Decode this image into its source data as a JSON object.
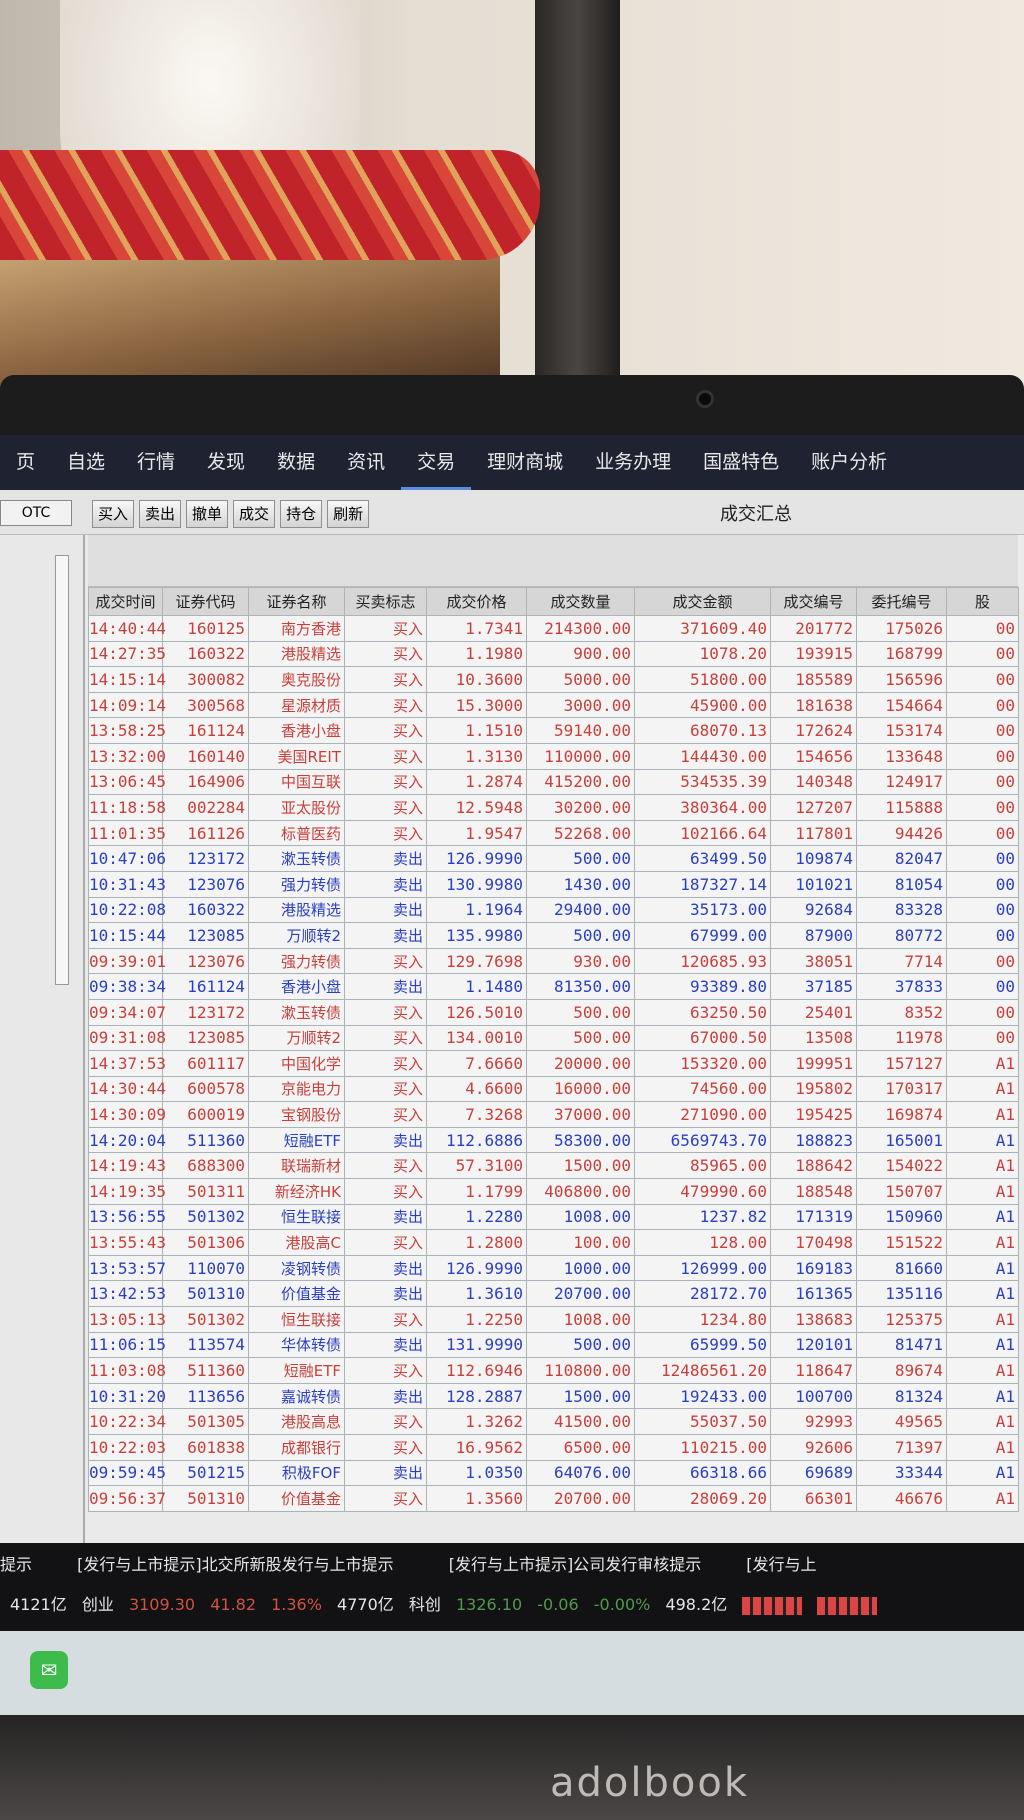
{
  "nav": {
    "items": [
      "页",
      "自选",
      "行情",
      "发现",
      "数据",
      "资讯",
      "交易",
      "理财商城",
      "业务办理",
      "国盛特色",
      "账户分析"
    ],
    "active": "交易"
  },
  "sidebar": {
    "otc_label": "OTC"
  },
  "toolbar": {
    "buttons": [
      "买入",
      "卖出",
      "撤单",
      "成交",
      "持仓",
      "刷新"
    ],
    "title": "成交汇总"
  },
  "table": {
    "columns": [
      "成交时间",
      "证券代码",
      "证券名称",
      "买卖标志",
      "成交价格",
      "成交数量",
      "成交金额",
      "成交编号",
      "委托编号",
      "股"
    ],
    "rows": [
      [
        "14:40:44",
        "160125",
        "南方香港",
        "买入",
        "1.7341",
        "214300.00",
        "371609.40",
        "201772",
        "175026",
        "00"
      ],
      [
        "14:27:35",
        "160322",
        "港股精选",
        "买入",
        "1.1980",
        "900.00",
        "1078.20",
        "193915",
        "168799",
        "00"
      ],
      [
        "14:15:14",
        "300082",
        "奥克股份",
        "买入",
        "10.3600",
        "5000.00",
        "51800.00",
        "185589",
        "156596",
        "00"
      ],
      [
        "14:09:14",
        "300568",
        "星源材质",
        "买入",
        "15.3000",
        "3000.00",
        "45900.00",
        "181638",
        "154664",
        "00"
      ],
      [
        "13:58:25",
        "161124",
        "香港小盘",
        "买入",
        "1.1510",
        "59140.00",
        "68070.13",
        "172624",
        "153174",
        "00"
      ],
      [
        "13:32:00",
        "160140",
        "美国REIT",
        "买入",
        "1.3130",
        "110000.00",
        "144430.00",
        "154656",
        "133648",
        "00"
      ],
      [
        "13:06:45",
        "164906",
        "中国互联",
        "买入",
        "1.2874",
        "415200.00",
        "534535.39",
        "140348",
        "124917",
        "00"
      ],
      [
        "11:18:58",
        "002284",
        "亚太股份",
        "买入",
        "12.5948",
        "30200.00",
        "380364.00",
        "127207",
        "115888",
        "00"
      ],
      [
        "11:01:35",
        "161126",
        "标普医药",
        "买入",
        "1.9547",
        "52268.00",
        "102166.64",
        "117801",
        "94426",
        "00"
      ],
      [
        "10:47:06",
        "123172",
        "漱玉转债",
        "卖出",
        "126.9990",
        "500.00",
        "63499.50",
        "109874",
        "82047",
        "00"
      ],
      [
        "10:31:43",
        "123076",
        "强力转债",
        "卖出",
        "130.9980",
        "1430.00",
        "187327.14",
        "101021",
        "81054",
        "00"
      ],
      [
        "10:22:08",
        "160322",
        "港股精选",
        "卖出",
        "1.1964",
        "29400.00",
        "35173.00",
        "92684",
        "83328",
        "00"
      ],
      [
        "10:15:44",
        "123085",
        "万顺转2",
        "卖出",
        "135.9980",
        "500.00",
        "67999.00",
        "87900",
        "80772",
        "00"
      ],
      [
        "09:39:01",
        "123076",
        "强力转债",
        "买入",
        "129.7698",
        "930.00",
        "120685.93",
        "38051",
        "7714",
        "00"
      ],
      [
        "09:38:34",
        "161124",
        "香港小盘",
        "卖出",
        "1.1480",
        "81350.00",
        "93389.80",
        "37185",
        "37833",
        "00"
      ],
      [
        "09:34:07",
        "123172",
        "漱玉转债",
        "买入",
        "126.5010",
        "500.00",
        "63250.50",
        "25401",
        "8352",
        "00"
      ],
      [
        "09:31:08",
        "123085",
        "万顺转2",
        "买入",
        "134.0010",
        "500.00",
        "67000.50",
        "13508",
        "11978",
        "00"
      ],
      [
        "14:37:53",
        "601117",
        "中国化学",
        "买入",
        "7.6660",
        "20000.00",
        "153320.00",
        "199951",
        "157127",
        "A1"
      ],
      [
        "14:30:44",
        "600578",
        "京能电力",
        "买入",
        "4.6600",
        "16000.00",
        "74560.00",
        "195802",
        "170317",
        "A1"
      ],
      [
        "14:30:09",
        "600019",
        "宝钢股份",
        "买入",
        "7.3268",
        "37000.00",
        "271090.00",
        "195425",
        "169874",
        "A1"
      ],
      [
        "14:20:04",
        "511360",
        "短融ETF",
        "卖出",
        "112.6886",
        "58300.00",
        "6569743.70",
        "188823",
        "165001",
        "A1"
      ],
      [
        "14:19:43",
        "688300",
        "联瑞新材",
        "买入",
        "57.3100",
        "1500.00",
        "85965.00",
        "188642",
        "154022",
        "A1"
      ],
      [
        "14:19:35",
        "501311",
        "新经济HK",
        "买入",
        "1.1799",
        "406800.00",
        "479990.60",
        "188548",
        "150707",
        "A1"
      ],
      [
        "13:56:55",
        "501302",
        "恒生联接",
        "卖出",
        "1.2280",
        "1008.00",
        "1237.82",
        "171319",
        "150960",
        "A1"
      ],
      [
        "13:55:43",
        "501306",
        "港股高C",
        "买入",
        "1.2800",
        "100.00",
        "128.00",
        "170498",
        "151522",
        "A1"
      ],
      [
        "13:53:57",
        "110070",
        "凌钢转债",
        "卖出",
        "126.9990",
        "1000.00",
        "126999.00",
        "169183",
        "81660",
        "A1"
      ],
      [
        "13:42:53",
        "501310",
        "价值基金",
        "卖出",
        "1.3610",
        "20700.00",
        "28172.70",
        "161365",
        "135116",
        "A1"
      ],
      [
        "13:05:13",
        "501302",
        "恒生联接",
        "买入",
        "1.2250",
        "1008.00",
        "1234.80",
        "138683",
        "125375",
        "A1"
      ],
      [
        "11:06:15",
        "113574",
        "华体转债",
        "卖出",
        "131.9990",
        "500.00",
        "65999.50",
        "120101",
        "81471",
        "A1"
      ],
      [
        "11:03:08",
        "511360",
        "短融ETF",
        "买入",
        "112.6946",
        "110800.00",
        "12486561.20",
        "118647",
        "89674",
        "A1"
      ],
      [
        "10:31:20",
        "113656",
        "嘉诚转债",
        "卖出",
        "128.2887",
        "1500.00",
        "192433.00",
        "100700",
        "81324",
        "A1"
      ],
      [
        "10:22:34",
        "501305",
        "港股高息",
        "买入",
        "1.3262",
        "41500.00",
        "55037.50",
        "92993",
        "49565",
        "A1"
      ],
      [
        "10:22:03",
        "601838",
        "成都银行",
        "买入",
        "16.9562",
        "6500.00",
        "110215.00",
        "92606",
        "71397",
        "A1"
      ],
      [
        "09:59:45",
        "501215",
        "积极FOF",
        "卖出",
        "1.0350",
        "64076.00",
        "66318.66",
        "69689",
        "33344",
        "A1"
      ],
      [
        "09:56:37",
        "501310",
        "价值基金",
        "买入",
        "1.3560",
        "20700.00",
        "28069.20",
        "66301",
        "46676",
        "A1"
      ]
    ]
  },
  "ticker": {
    "news": [
      "提示",
      "[发行与上市提示]北交所新股发行与上市提示",
      "[发行与上市提示]公司发行审核提示",
      "[发行与上"
    ],
    "quotes": {
      "vol1": "4121亿",
      "cy_label": "创业",
      "cy_value": "3109.30",
      "cy_change": "41.82",
      "cy_pct": "1.36%",
      "cy_vol": "4770亿",
      "kc_label": "科创",
      "kc_value": "1326.10",
      "kc_change": "-0.06",
      "kc_pct": "-0.00%",
      "kc_vol": "498.2亿"
    }
  },
  "laptop_brand": "adolbook",
  "colors": {
    "buy": "#c8403c",
    "sell": "#2a3fc2",
    "nav_bg": "#1f2230",
    "up": "#d0523f",
    "down": "#4f9a4a"
  }
}
